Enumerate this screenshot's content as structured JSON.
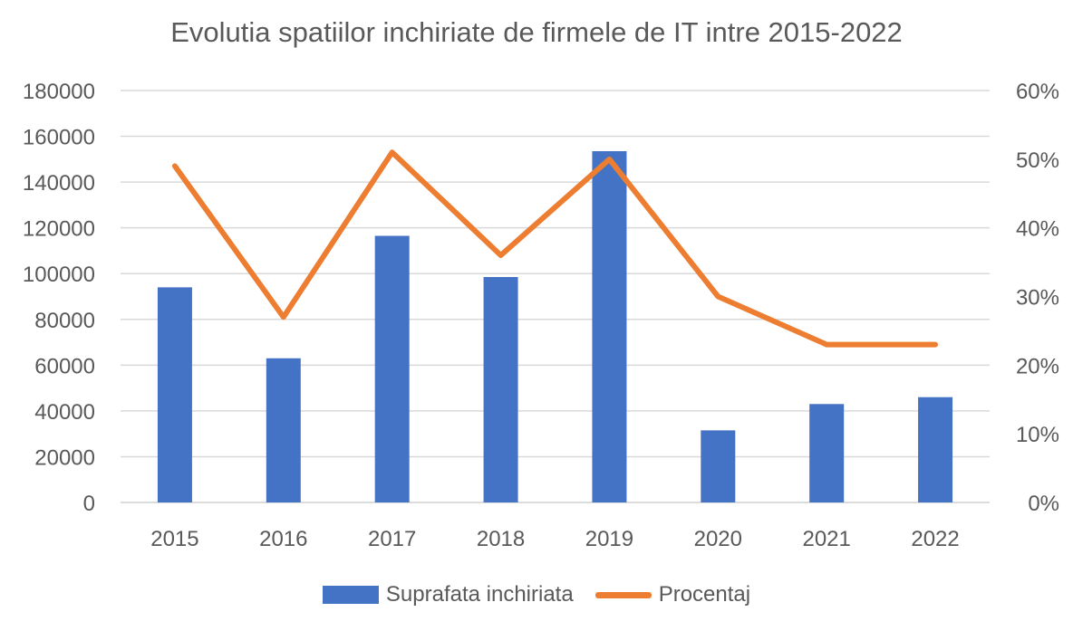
{
  "chart_data": {
    "type": "bar+line",
    "title": "Evolutia spatiilor inchiriate de firmele de IT intre 2015-2022",
    "categories": [
      "2015",
      "2016",
      "2017",
      "2018",
      "2019",
      "2020",
      "2021",
      "2022"
    ],
    "series": [
      {
        "name": "Suprafata inchiriata",
        "type": "bar",
        "axis": "left",
        "color": "#4472C4",
        "values": [
          94000,
          63000,
          116500,
          98500,
          153500,
          31500,
          43000,
          46000
        ]
      },
      {
        "name": "Procentaj",
        "type": "line",
        "axis": "right",
        "color": "#ED7D31",
        "values": [
          0.49,
          0.27,
          0.51,
          0.36,
          0.5,
          0.3,
          0.23,
          0.23
        ]
      }
    ],
    "y_left": {
      "min": 0,
      "max": 180000,
      "step": 20000,
      "tick_labels": [
        "0",
        "20000",
        "40000",
        "60000",
        "80000",
        "100000",
        "120000",
        "140000",
        "160000",
        "180000"
      ]
    },
    "y_right": {
      "min": 0,
      "max": 0.6,
      "step": 0.1,
      "tick_labels": [
        "0%",
        "10%",
        "20%",
        "30%",
        "40%",
        "50%",
        "60%"
      ]
    },
    "grid": true,
    "legend_position": "bottom"
  }
}
